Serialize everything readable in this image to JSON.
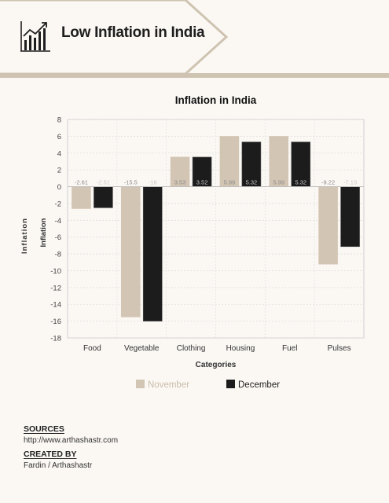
{
  "header": {
    "title": "Low Inflation in India",
    "icon": "line-chart-up-icon",
    "accent_color": "#cfc3b1"
  },
  "chart_data": {
    "type": "bar",
    "title": "Inflation in India",
    "xlabel": "Categories",
    "ylabel": "Inflation",
    "outer_label": "Inflation",
    "categories": [
      "Food",
      "Vegetable",
      "Clothing",
      "Housing",
      "Fuel",
      "Pulses"
    ],
    "series": [
      {
        "name": "November",
        "values": [
          -2.61,
          -15.5,
          3.53,
          5.99,
          5.99,
          -9.22
        ],
        "color": "#d3c5b3"
      },
      {
        "name": "December",
        "values": [
          -2.51,
          -16,
          3.52,
          5.32,
          5.32,
          -7.13
        ],
        "color": "#1c1c1c"
      }
    ],
    "ylim": [
      -18,
      8
    ],
    "yticks": [
      "8",
      "6",
      "4",
      "2",
      "0",
      "-2",
      "-4",
      "-6",
      "-8",
      "-10",
      "-12",
      "-14",
      "-16",
      "-18"
    ],
    "grid": true,
    "legend_position": "bottom"
  },
  "footer": {
    "sources_label": "SOURCES",
    "sources_value": "http://www.arthashastr.com",
    "created_label": "CREATED BY",
    "created_value": "Fardin / Arthashastr"
  }
}
